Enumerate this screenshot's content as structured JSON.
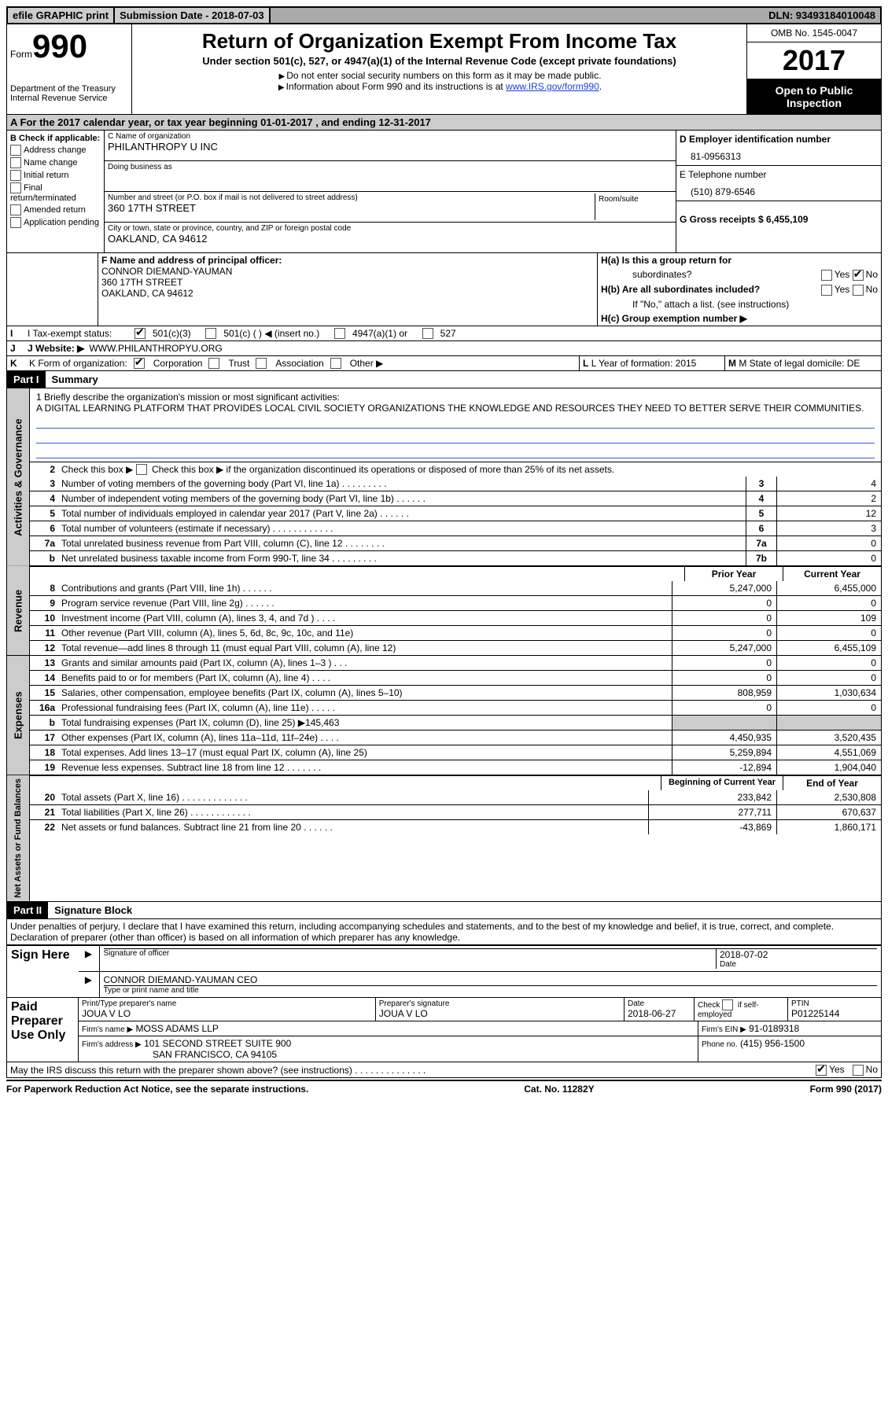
{
  "top": {
    "efile": "efile GRAPHIC print",
    "submission": "Submission Date - 2018-07-03",
    "dln": "DLN: 93493184010048"
  },
  "header": {
    "form_label": "Form",
    "form_num": "990",
    "dept": "Department of the Treasury\nInternal Revenue Service",
    "title": "Return of Organization Exempt From Income Tax",
    "subtitle": "Under section 501(c), 527, or 4947(a)(1) of the Internal Revenue Code (except private foundations)",
    "note1": "Do not enter social security numbers on this form as it may be made public.",
    "note2_pre": "Information about Form 990 and its instructions is at ",
    "note2_link": "www.IRS.gov/form990",
    "omb": "OMB No. 1545-0047",
    "year": "2017",
    "open": "Open to Public Inspection"
  },
  "band_a": "A  For the 2017 calendar year, or tax year beginning 01-01-2017   , and ending 12-31-2017",
  "section_b": {
    "label": "B Check if applicable:",
    "opts": [
      "Address change",
      "Name change",
      "Initial return",
      "Final return/terminated",
      "Amended return",
      "Application pending"
    ]
  },
  "section_c": {
    "name_label": "C Name of organization",
    "name": "PHILANTHROPY U INC",
    "dba_label": "Doing business as",
    "street_label": "Number and street (or P.O. box if mail is not delivered to street address)",
    "room_label": "Room/suite",
    "street": "360 17TH STREET",
    "city_label": "City or town, state or province, country, and ZIP or foreign postal code",
    "city": "OAKLAND, CA  94612"
  },
  "section_d": {
    "ein_label": "D Employer identification number",
    "ein": "81-0956313",
    "phone_label": "E Telephone number",
    "phone": "(510) 879-6546",
    "gross_label": "G Gross receipts $ 6,455,109"
  },
  "section_f": {
    "label": "F  Name and address of principal officer:",
    "name": "CONNOR DIEMAND-YAUMAN",
    "addr1": "360 17TH STREET",
    "addr2": "OAKLAND, CA  94612"
  },
  "section_h": {
    "ha_label": "H(a)  Is this a group return for",
    "ha_label2": "subordinates?",
    "hb_label": "H(b)  Are all subordinates included?",
    "hb_note": "If \"No,\" attach a list. (see instructions)",
    "hc_label": "H(c)  Group exemption number ▶",
    "yes": "Yes",
    "no": "No"
  },
  "section_i": {
    "label": "I  Tax-exempt status:",
    "opts": [
      "501(c)(3)",
      "501(c) (   ) ◀ (insert no.)",
      "4947(a)(1) or",
      "527"
    ]
  },
  "section_j": {
    "label": "J  Website: ▶",
    "value": "WWW.PHILANTHROPYU.ORG"
  },
  "section_k": {
    "label": "K Form of organization:",
    "opts": [
      "Corporation",
      "Trust",
      "Association",
      "Other ▶"
    ],
    "l_label": "L Year of formation: 2015",
    "m_label": "M State of legal domicile: DE"
  },
  "part1": {
    "header": "Part I",
    "title": "Summary",
    "mission_label": "1  Briefly describe the organization's mission or most significant activities:",
    "mission": "A DIGITAL LEARNING PLATFORM THAT PROVIDES LOCAL CIVIL SOCIETY ORGANIZATIONS THE KNOWLEDGE AND RESOURCES THEY NEED TO BETTER SERVE THEIR COMMUNITIES.",
    "line2": "Check this box ▶      if the organization discontinued its operations or disposed of more than 25% of its net assets.",
    "governance": [
      {
        "n": "3",
        "t": "Number of voting members of the governing body (Part VI, line 1a)   .   .   .   .   .   .   .   .   .",
        "b": "3",
        "v": "4"
      },
      {
        "n": "4",
        "t": "Number of independent voting members of the governing body (Part VI, line 1b)   .   .   .   .   .   .",
        "b": "4",
        "v": "2"
      },
      {
        "n": "5",
        "t": "Total number of individuals employed in calendar year 2017 (Part V, line 2a)   .   .   .   .   .   .",
        "b": "5",
        "v": "12"
      },
      {
        "n": "6",
        "t": "Total number of volunteers (estimate if necessary)   .   .   .   .   .   .   .   .   .   .   .   .",
        "b": "6",
        "v": "3"
      },
      {
        "n": "7a",
        "t": "Total unrelated business revenue from Part VIII, column (C), line 12   .   .   .   .   .   .   .   .",
        "b": "7a",
        "v": "0"
      },
      {
        "n": "b",
        "t": "Net unrelated business taxable income from Form 990-T, line 34   .   .   .   .   .   .   .   .   .",
        "b": "7b",
        "v": "0"
      }
    ],
    "prior_label": "Prior Year",
    "current_label": "Current Year",
    "revenue": [
      {
        "n": "8",
        "t": "Contributions and grants (Part VIII, line 1h)   .   .   .   .   .   .",
        "p": "5,247,000",
        "c": "6,455,000"
      },
      {
        "n": "9",
        "t": "Program service revenue (Part VIII, line 2g)   .   .   .   .   .   .",
        "p": "0",
        "c": "0"
      },
      {
        "n": "10",
        "t": "Investment income (Part VIII, column (A), lines 3, 4, and 7d )   .   .   .   .",
        "p": "0",
        "c": "109"
      },
      {
        "n": "11",
        "t": "Other revenue (Part VIII, column (A), lines 5, 6d, 8c, 9c, 10c, and 11e)",
        "p": "0",
        "c": "0"
      },
      {
        "n": "12",
        "t": "Total revenue—add lines 8 through 11 (must equal Part VIII, column (A), line 12)",
        "p": "5,247,000",
        "c": "6,455,109"
      }
    ],
    "expenses": [
      {
        "n": "13",
        "t": "Grants and similar amounts paid (Part IX, column (A), lines 1–3 )   .   .   .",
        "p": "0",
        "c": "0"
      },
      {
        "n": "14",
        "t": "Benefits paid to or for members (Part IX, column (A), line 4)   .   .   .   .",
        "p": "0",
        "c": "0"
      },
      {
        "n": "15",
        "t": "Salaries, other compensation, employee benefits (Part IX, column (A), lines 5–10)",
        "p": "808,959",
        "c": "1,030,634"
      },
      {
        "n": "16a",
        "t": "Professional fundraising fees (Part IX, column (A), line 11e)   .   .   .   .   .",
        "p": "0",
        "c": "0"
      },
      {
        "n": "b",
        "t": "Total fundraising expenses (Part IX, column (D), line 25) ▶145,463",
        "p": "shade",
        "c": "shade"
      },
      {
        "n": "17",
        "t": "Other expenses (Part IX, column (A), lines 11a–11d, 11f–24e)   .   .   .   .",
        "p": "4,450,935",
        "c": "3,520,435"
      },
      {
        "n": "18",
        "t": "Total expenses. Add lines 13–17 (must equal Part IX, column (A), line 25)",
        "p": "5,259,894",
        "c": "4,551,069"
      },
      {
        "n": "19",
        "t": "Revenue less expenses. Subtract line 18 from line 12   .   .   .   .   .   .   .",
        "p": "-12,894",
        "c": "1,904,040"
      }
    ],
    "boy_label": "Beginning of Current Year",
    "eoy_label": "End of Year",
    "netassets": [
      {
        "n": "20",
        "t": "Total assets (Part X, line 16)   .   .   .   .   .   .   .   .   .   .   .   .   .",
        "p": "233,842",
        "c": "2,530,808"
      },
      {
        "n": "21",
        "t": "Total liabilities (Part X, line 26)   .   .   .   .   .   .   .   .   .   .   .   .",
        "p": "277,711",
        "c": "670,637"
      },
      {
        "n": "22",
        "t": "Net assets or fund balances. Subtract line 21 from line 20   .   .   .   .   .   .",
        "p": "-43,869",
        "c": "1,860,171"
      }
    ]
  },
  "part2": {
    "header": "Part II",
    "title": "Signature Block",
    "perjury": "Under penalties of perjury, I declare that I have examined this return, including accompanying schedules and statements, and to the best of my knowledge and belief, it is true, correct, and complete. Declaration of preparer (other than officer) is based on all information of which preparer has any knowledge.",
    "sign_here": "Sign Here",
    "sig_officer": "Signature of officer",
    "sig_date": "2018-07-02",
    "date_label": "Date",
    "officer_name": "CONNOR DIEMAND-YAUMAN CEO",
    "name_title_label": "Type or print name and title",
    "paid_prep": "Paid Preparer Use Only",
    "prep_name_label": "Print/Type preparer's name",
    "prep_name": "JOUA V LO",
    "prep_sig_label": "Preparer's signature",
    "prep_sig": "JOUA V LO",
    "prep_date_label": "Date",
    "prep_date": "2018-06-27",
    "check_label": "Check       if self-employed",
    "ptin_label": "PTIN",
    "ptin": "P01225144",
    "firm_name_label": "Firm's name    ▶",
    "firm_name": "MOSS ADAMS LLP",
    "firm_ein_label": "Firm's EIN ▶",
    "firm_ein": "91-0189318",
    "firm_addr_label": "Firm's address ▶",
    "firm_addr1": "101 SECOND STREET SUITE 900",
    "firm_addr2": "SAN FRANCISCO, CA  94105",
    "phone_label": "Phone no.",
    "phone": "(415) 956-1500",
    "discuss": "May the IRS discuss this return with the preparer shown above? (see instructions)   .   .   .   .   .   .   .   .   .   .   .   .   .   .",
    "yes": "Yes",
    "no": "No"
  },
  "footer": {
    "left": "For Paperwork Reduction Act Notice, see the separate instructions.",
    "center": "Cat. No. 11282Y",
    "right": "Form 990 (2017)"
  },
  "side_labels": {
    "gov": "Activities & Governance",
    "rev": "Revenue",
    "exp": "Expenses",
    "net": "Net Assets or Fund Balances"
  }
}
